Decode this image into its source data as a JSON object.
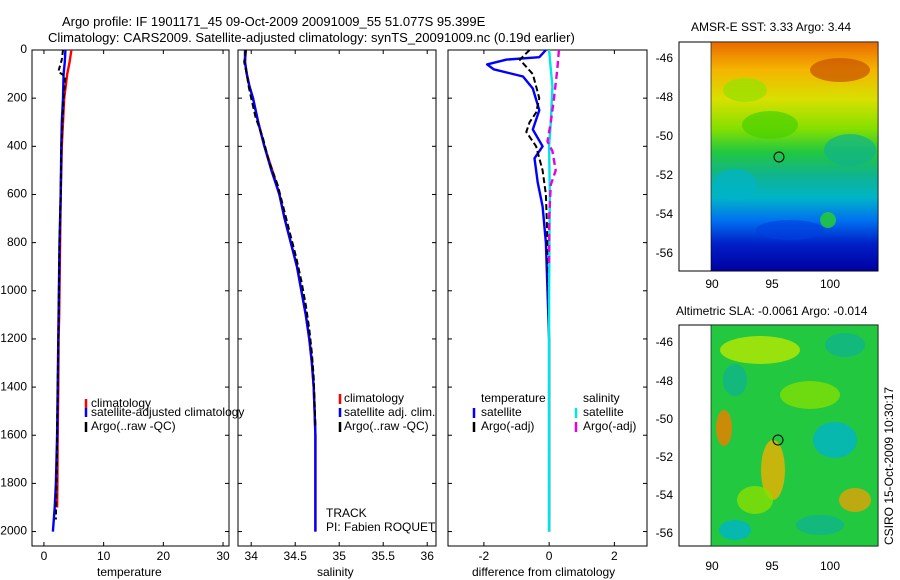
{
  "title": {
    "line1": "Argo profile: IF 1901171_45 09-Oct-2009 20091009_55 51.077S 95.399E",
    "line2": "Climatology: CARS2009. Satellite-adjusted climatology: synTS_20091009.nc (0.19d earlier)"
  },
  "depth_axis": {
    "ticks": [
      "0",
      "200",
      "400",
      "600",
      "800",
      "1000",
      "1200",
      "1400",
      "1600",
      "1800",
      "2000"
    ],
    "ylim": [
      0,
      2060
    ]
  },
  "colors": {
    "climatology": "#ff0000",
    "satellite": "#0000ff",
    "argo": "#000000",
    "sat_sal": "#00e5e5",
    "argo_sal": "#e600e6"
  },
  "chart_data": [
    {
      "type": "line",
      "name": "temperature-panel",
      "xlabel": "temperature",
      "xlim": [
        -2,
        31
      ],
      "xticks": [
        0,
        10,
        20,
        30
      ],
      "xtick_labels": [
        "0",
        "10",
        "20",
        "30"
      ],
      "legend": [
        "climatology",
        "satellite-adjusted climatology",
        "Argo(..raw -QC)"
      ],
      "series": [
        {
          "name": "climatology",
          "color": "#ff0000",
          "dash": "none",
          "width": 2.4,
          "x": [
            4.6,
            4.3,
            3.9,
            3.4,
            3.2,
            3.0,
            2.9,
            2.8,
            2.75,
            2.7,
            2.6,
            2.55,
            2.45,
            2.4,
            2.35,
            2.3,
            2.25,
            2.2
          ],
          "y": [
            0,
            50,
            100,
            200,
            300,
            400,
            500,
            600,
            700,
            800,
            1000,
            1100,
            1200,
            1400,
            1500,
            1600,
            1800,
            1900
          ]
        },
        {
          "name": "satellite-adjusted climatology",
          "color": "#0000ff",
          "dash": "none",
          "width": 2.4,
          "x": [
            3.6,
            3.5,
            3.3,
            3.2,
            3.0,
            2.9,
            2.85,
            2.8,
            2.7,
            2.6,
            2.5,
            2.4,
            2.3,
            2.2,
            2.0,
            1.8,
            1.5
          ],
          "y": [
            0,
            50,
            100,
            200,
            300,
            400,
            500,
            600,
            700,
            800,
            1000,
            1200,
            1400,
            1600,
            1800,
            1900,
            2000
          ]
        },
        {
          "name": "Argo(..raw -QC)",
          "color": "#000000",
          "dash": "5,3",
          "width": 2,
          "x": [
            3.2,
            3.0,
            2.4,
            3.6,
            3.3,
            3.1,
            2.9,
            2.85,
            2.8,
            2.7,
            2.6,
            2.5,
            2.4,
            2.3,
            2.2,
            2.1,
            2.0
          ],
          "y": [
            0,
            40,
            90,
            110,
            200,
            300,
            400,
            500,
            600,
            700,
            800,
            1000,
            1200,
            1400,
            1600,
            1800,
            1950
          ]
        }
      ]
    },
    {
      "type": "line",
      "name": "salinity-panel",
      "xlabel": "salinity",
      "xlim": [
        33.85,
        36.1
      ],
      "xticks": [
        34,
        34.5,
        35,
        35.5,
        36
      ],
      "xtick_labels": [
        "34",
        "34.5",
        "35",
        "35.5",
        "36"
      ],
      "legend": [
        "climatology",
        "satellite adj. clim.",
        "Argo(..raw -QC)"
      ],
      "annotations": [
        "TRACK",
        "PI: Fabien ROQUET"
      ],
      "series": [
        {
          "name": "climatology",
          "color": "#ff0000",
          "dash": "none",
          "width": 2.4,
          "x": [
            33.94,
            33.93,
            33.95,
            33.98,
            34.02,
            34.08,
            34.15,
            34.24,
            34.32,
            34.38,
            34.45,
            34.52,
            34.57,
            34.62,
            34.66,
            34.69,
            34.71,
            34.72,
            34.73,
            34.73,
            34.73
          ],
          "y": [
            0,
            50,
            100,
            150,
            200,
            300,
            400,
            500,
            600,
            700,
            800,
            900,
            1000,
            1100,
            1200,
            1300,
            1400,
            1500,
            1600,
            1800,
            2000
          ]
        },
        {
          "name": "satellite adj. clim.",
          "color": "#0000ff",
          "dash": "none",
          "width": 2.4,
          "x": [
            33.93,
            33.93,
            33.95,
            33.98,
            34.02,
            34.08,
            34.15,
            34.23,
            34.32,
            34.38,
            34.45,
            34.52,
            34.57,
            34.62,
            34.66,
            34.69,
            34.71,
            34.72,
            34.73,
            34.73,
            34.73
          ],
          "y": [
            0,
            50,
            100,
            150,
            200,
            300,
            400,
            500,
            600,
            700,
            800,
            900,
            1000,
            1100,
            1200,
            1300,
            1400,
            1500,
            1600,
            1800,
            2000
          ]
        },
        {
          "name": "Argo(..raw -QC)",
          "color": "#000000",
          "dash": "6,3",
          "width": 2,
          "x": [
            33.94,
            33.92,
            33.95,
            33.97,
            34.0,
            34.05,
            34.13,
            34.2,
            34.3,
            34.37,
            34.44,
            34.51,
            34.57,
            34.62,
            34.66,
            34.69,
            34.71,
            34.72,
            34.73
          ],
          "y": [
            0,
            50,
            100,
            150,
            200,
            280,
            360,
            460,
            560,
            660,
            760,
            860,
            960,
            1060,
            1160,
            1260,
            1360,
            1460,
            1560
          ]
        }
      ]
    },
    {
      "type": "line",
      "name": "difference-panel",
      "xlabel": "difference from climatology",
      "xlim": [
        -3.1,
        3.0
      ],
      "xticks": [
        -2,
        0,
        2
      ],
      "xtick_labels": [
        "-2",
        "0",
        "2"
      ],
      "legend_title_left": "temperature",
      "legend_title_right": "salinity",
      "legend": [
        "satellite",
        "Argo(-adj)",
        "satellite",
        "Argo(-adj)"
      ],
      "series": [
        {
          "name": "temperature satellite",
          "color": "#0000ff",
          "dash": "none",
          "width": 2.4,
          "x": [
            -0.1,
            -0.3,
            -1.3,
            -1.9,
            -1.7,
            -0.8,
            -0.5,
            -0.3,
            -0.5,
            -0.2,
            -0.45,
            -0.35,
            -0.2,
            -0.1,
            -0.05,
            0,
            0,
            0
          ],
          "y": [
            0,
            30,
            40,
            60,
            80,
            110,
            160,
            250,
            330,
            400,
            450,
            550,
            650,
            800,
            1000,
            1200,
            1600,
            2000
          ]
        },
        {
          "name": "temperature Argo(-adj)",
          "color": "#000000",
          "dash": "6,3",
          "width": 2,
          "x": [
            -0.6,
            -0.9,
            -0.5,
            -0.3,
            -0.4,
            -0.6,
            -0.7,
            -0.4,
            -0.2,
            -0.1,
            -0.05,
            0,
            0
          ],
          "y": [
            0,
            40,
            100,
            200,
            260,
            300,
            340,
            400,
            500,
            600,
            800,
            1200,
            1950
          ]
        },
        {
          "name": "salinity satellite",
          "color": "#00e5e5",
          "dash": "none",
          "width": 2.4,
          "x": [
            0,
            0.05,
            0.1,
            0.05,
            0,
            0.02,
            0,
            0,
            0
          ],
          "y": [
            0,
            80,
            150,
            300,
            400,
            600,
            1000,
            1600,
            2000
          ]
        },
        {
          "name": "salinity Argo(-adj)",
          "color": "#e600e6",
          "dash": "7,4",
          "width": 2.4,
          "x": [
            0.3,
            0.25,
            0.15,
            0.05,
            -0.05,
            0.1,
            0.2,
            0.05,
            0,
            0
          ],
          "y": [
            0,
            80,
            200,
            300,
            380,
            420,
            500,
            560,
            700,
            900
          ]
        }
      ]
    },
    {
      "type": "heatmap",
      "name": "amsr-e-sst-map",
      "title": "AMSR-E SST: 3.33 Argo: 3.44",
      "xlim": [
        87.5,
        104
      ],
      "ylim": [
        -57.2,
        -45.2
      ],
      "xticks": [
        "90",
        "95",
        "100"
      ],
      "yticks": [
        "-46",
        "-48",
        "-50",
        "-52",
        "-54",
        "-56"
      ],
      "marker": {
        "lon": 95.4,
        "lat": -51.08
      }
    },
    {
      "type": "heatmap",
      "name": "altimetric-sla-map",
      "title": "Altimetric SLA: -0.0061 Argo: -0.014",
      "xlim": [
        87.5,
        104
      ],
      "ylim": [
        -57.2,
        -45.2
      ],
      "xticks": [
        "90",
        "95",
        "100"
      ],
      "yticks": [
        "-46",
        "-48",
        "-50",
        "-52",
        "-54",
        "-56"
      ],
      "marker": {
        "lon": 95.4,
        "lat": -51.08
      }
    }
  ],
  "side_label": "CSIRO 15-Oct-2009 10:30:17"
}
